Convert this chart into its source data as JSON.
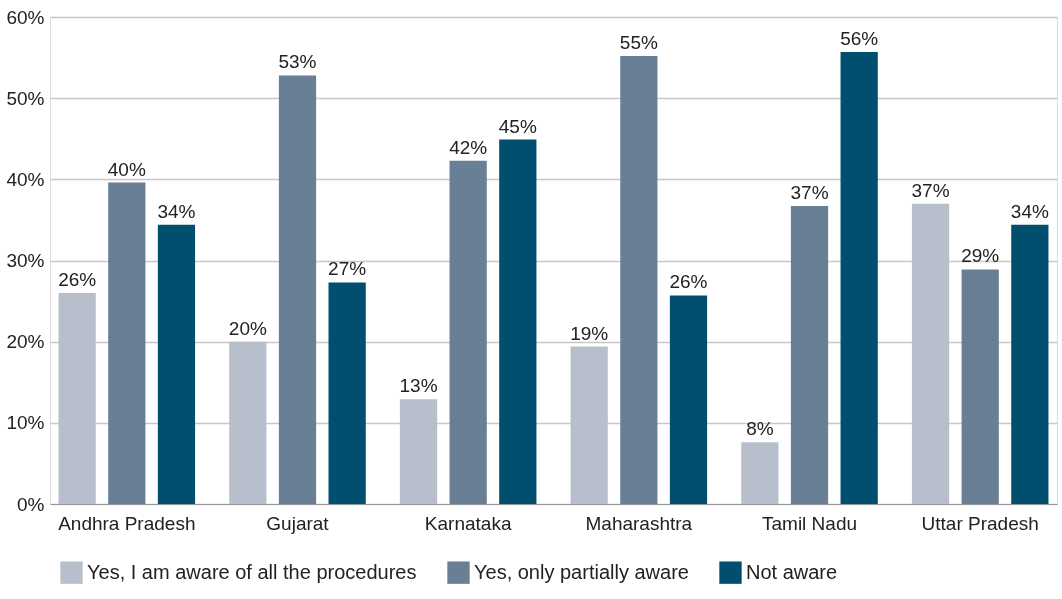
{
  "chart_data": {
    "type": "bar",
    "categories": [
      "Andhra Pradesh",
      "Gujarat",
      "Karnataka",
      "Maharashtra",
      "Tamil Nadu",
      "Uttar Pradesh"
    ],
    "series": [
      {
        "name": "Yes, I am aware of all the procedures",
        "color": "#b8bfcc",
        "values": [
          26,
          20,
          12.9,
          19.4,
          7.6,
          37
        ],
        "value_labels": [
          "26%",
          "20%",
          "13%",
          "19%",
          "8%",
          "37%"
        ]
      },
      {
        "name": "Yes, only partially aware",
        "color": "#687f96",
        "values": [
          39.6,
          52.8,
          42.3,
          55.2,
          36.7,
          28.9
        ],
        "value_labels": [
          "40%",
          "53%",
          "42%",
          "55%",
          "37%",
          "29%"
        ]
      },
      {
        "name": "Not aware",
        "color": "#004f6e",
        "values": [
          34.4,
          27.3,
          44.9,
          25.7,
          55.7,
          34.4
        ],
        "value_labels": [
          "34%",
          "27%",
          "45%",
          "26%",
          "56%",
          "34%"
        ]
      }
    ],
    "ylim": [
      0,
      60
    ],
    "yticks": [
      {
        "value": 0,
        "label": "0%"
      },
      {
        "value": 10,
        "label": "10%"
      },
      {
        "value": 20,
        "label": "20%"
      },
      {
        "value": 30,
        "label": "30%"
      },
      {
        "value": 40,
        "label": "40%"
      },
      {
        "value": 50,
        "label": "50%"
      },
      {
        "value": 60,
        "label": "60%"
      }
    ],
    "grid": "y",
    "legend": "bottom"
  }
}
